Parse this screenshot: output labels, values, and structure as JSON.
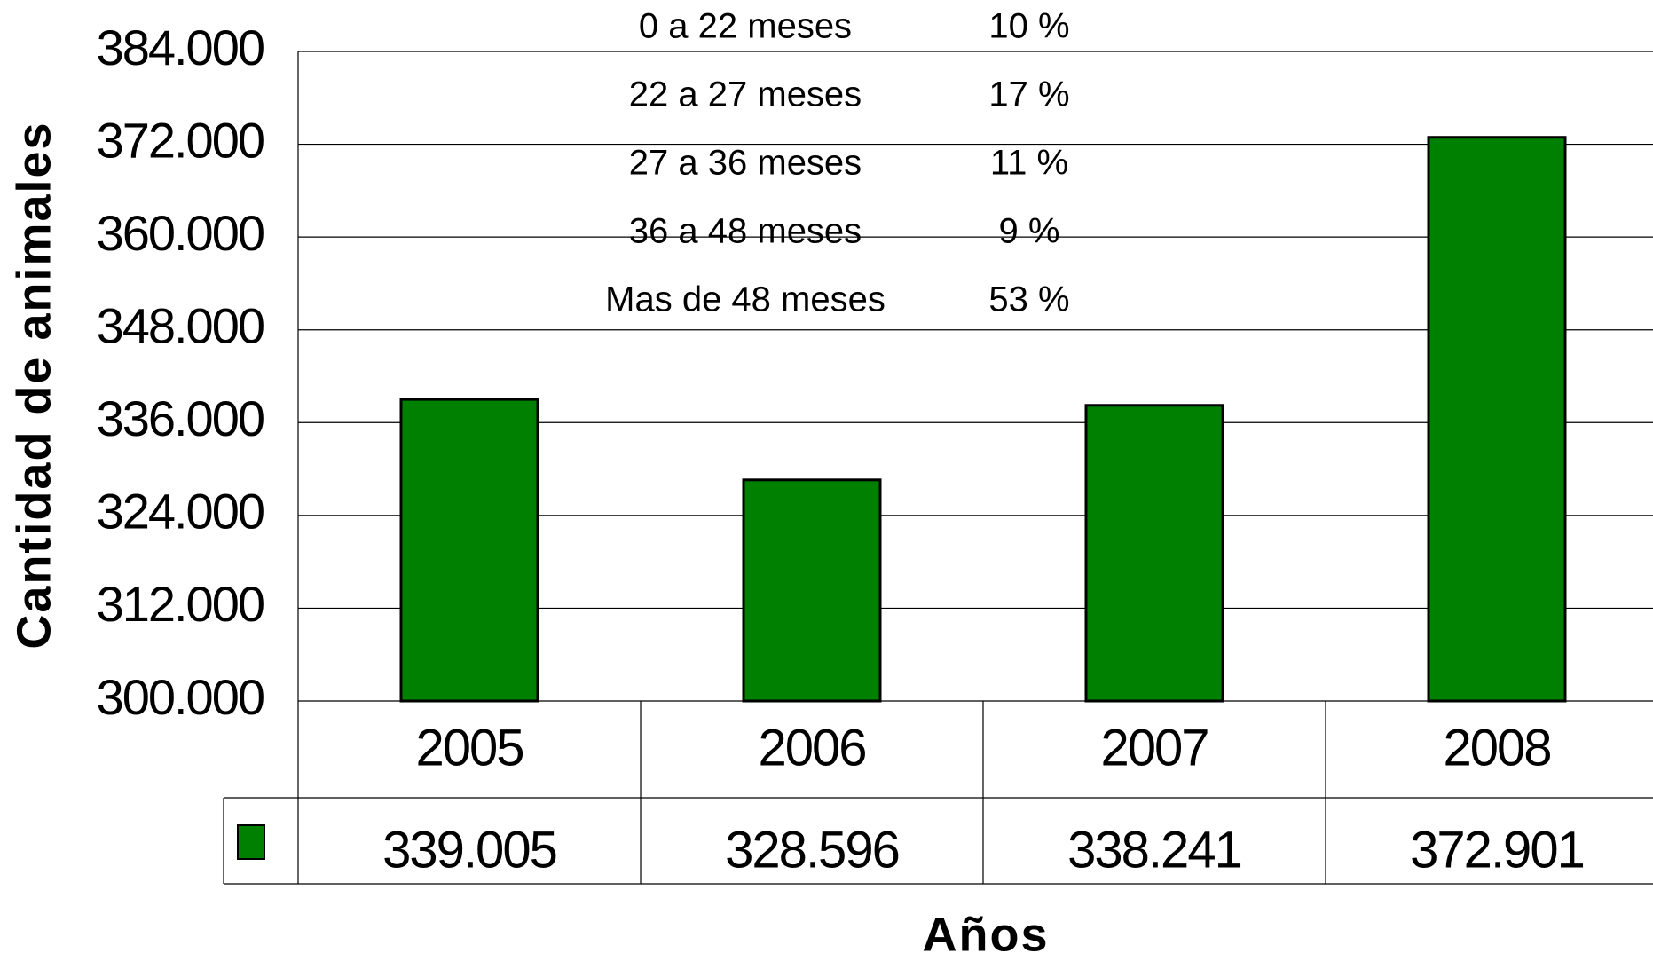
{
  "chart_data": {
    "type": "bar",
    "y_label": "Cantidad de animales",
    "x_label": "Años",
    "categories": [
      "2005",
      "2006",
      "2007",
      "2008"
    ],
    "values": [
      339005,
      328596,
      338241,
      372901
    ],
    "value_labels": [
      "339.005",
      "328.596",
      "338.241",
      "372.901"
    ],
    "color": "#008000",
    "ylim": [
      300000,
      384000
    ],
    "yticks": [
      {
        "value": 300000,
        "label": "300.000"
      },
      {
        "value": 312000,
        "label": "312.000"
      },
      {
        "value": 324000,
        "label": "324.000"
      },
      {
        "value": 336000,
        "label": "336.000"
      },
      {
        "value": 348000,
        "label": "348.000"
      },
      {
        "value": 360000,
        "label": "360.000"
      },
      {
        "value": 372000,
        "label": "372.000"
      },
      {
        "value": 384000,
        "label": "384.000"
      }
    ],
    "grid": true,
    "annotations": [
      [
        "0 a 22 meses",
        "10 %"
      ],
      [
        "22 a 27 meses",
        "17 %"
      ],
      [
        "27 a 36 meses",
        "11 %"
      ],
      [
        "36 a 48 meses",
        "9 %"
      ],
      [
        "Mas de 48 meses",
        "53 %"
      ]
    ]
  }
}
